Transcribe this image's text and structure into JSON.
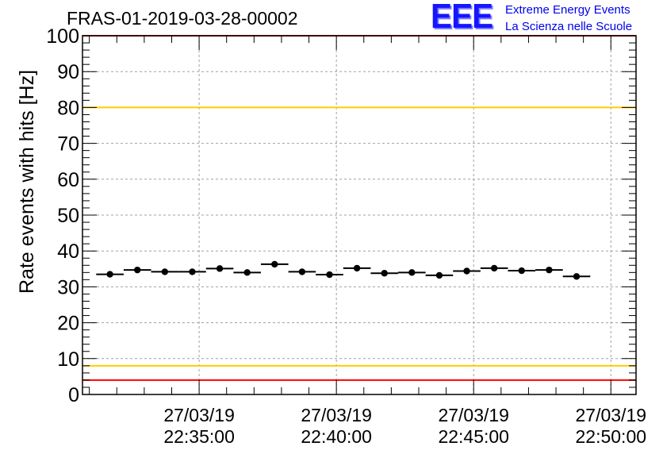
{
  "header": {
    "title": "FRAS-01-2019-03-28-00002",
    "logo_mark": "EEE",
    "logo_line1": "Extreme Energy Events",
    "logo_line2": "La Scienza nelle Scuole",
    "logo_color": "#0000ee"
  },
  "chart_data": {
    "type": "scatter",
    "ylabel": "Rate events with hits [Hz]",
    "xlabel": "",
    "ylim": [
      0,
      100
    ],
    "yticks": [
      0,
      10,
      20,
      30,
      40,
      50,
      60,
      70,
      80,
      90,
      100
    ],
    "grid": true,
    "xticks": [
      {
        "date": "27/03/19",
        "time": "22:35:00"
      },
      {
        "date": "27/03/19",
        "time": "22:40:00"
      },
      {
        "date": "27/03/19",
        "time": "22:45:00"
      },
      {
        "date": "27/03/19",
        "time": "22:50:00"
      }
    ],
    "xrange": [
      "22:30:45",
      "22:50:55"
    ],
    "bin_width_seconds": 60,
    "points": [
      {
        "x": "22:31:45",
        "y": 33.5
      },
      {
        "x": "22:32:45",
        "y": 34.7
      },
      {
        "x": "22:33:45",
        "y": 34.2
      },
      {
        "x": "22:34:45",
        "y": 34.2
      },
      {
        "x": "22:35:45",
        "y": 35.1
      },
      {
        "x": "22:36:45",
        "y": 34.0
      },
      {
        "x": "22:37:45",
        "y": 36.3
      },
      {
        "x": "22:38:45",
        "y": 34.2
      },
      {
        "x": "22:39:45",
        "y": 33.4
      },
      {
        "x": "22:40:45",
        "y": 35.2
      },
      {
        "x": "22:41:45",
        "y": 33.8
      },
      {
        "x": "22:42:45",
        "y": 34.0
      },
      {
        "x": "22:43:45",
        "y": 33.2
      },
      {
        "x": "22:44:45",
        "y": 34.4
      },
      {
        "x": "22:45:45",
        "y": 35.2
      },
      {
        "x": "22:46:45",
        "y": 34.5
      },
      {
        "x": "22:47:45",
        "y": 34.7
      },
      {
        "x": "22:48:45",
        "y": 32.9
      }
    ],
    "reference_lines": [
      {
        "y": 100,
        "color": "#ff0000"
      },
      {
        "y": 80,
        "color": "#ffcc00"
      },
      {
        "y": 8,
        "color": "#ffcc00"
      },
      {
        "y": 4,
        "color": "#ff0000"
      }
    ]
  }
}
